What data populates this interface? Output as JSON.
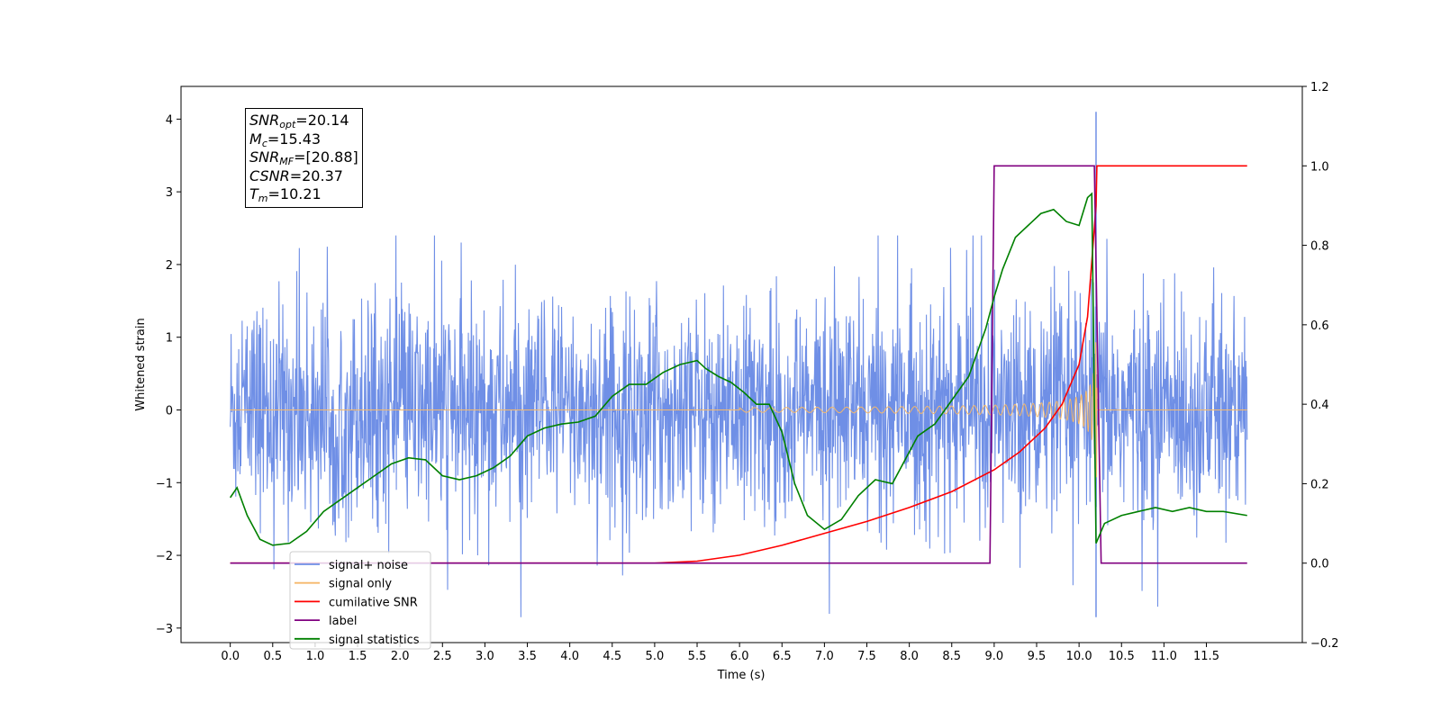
{
  "chart_data": {
    "type": "line",
    "xlabel": "Time (s)",
    "ylabel": "Whitened strain",
    "xlim": [
      -0.58,
      12.63
    ],
    "ylim": [
      -3.2,
      4.45
    ],
    "y2lim": [
      -0.2,
      1.2
    ],
    "x_ticks": [
      "0.0",
      "0.5",
      "1.0",
      "1.5",
      "2.0",
      "2.5",
      "3.0",
      "3.5",
      "4.0",
      "4.5",
      "5.0",
      "5.5",
      "6.0",
      "6.5",
      "7.0",
      "7.5",
      "8.0",
      "8.5",
      "9.0",
      "9.5",
      "10.0",
      "10.5",
      "11.0",
      "11.5"
    ],
    "y_ticks": [
      "4",
      "3",
      "2",
      "1",
      "0",
      "−1",
      "−2",
      "−3"
    ],
    "y2_ticks": [
      "1.2",
      "1.0",
      "0.8",
      "0.6",
      "0.4",
      "0.2",
      "0.0",
      "−0.2"
    ],
    "legend_position": "lower-left",
    "colors": {
      "signal_noise": "#6f8fe6",
      "signal_only": "#f5b86a",
      "cumulative_snr": "#ff0000",
      "label": "#800080",
      "signal_statistics": "#008000"
    },
    "series": [
      {
        "name": "signal+ noise",
        "axis": "left",
        "description_range": [
          -2.9,
          4.1
        ],
        "envelope_x": [
          0.0,
          11.98
        ],
        "spike_max_at": 10.2
      },
      {
        "name": "signal only",
        "axis": "left",
        "chirp": {
          "x_start": 6.0,
          "x_merge": 10.21,
          "x_end": 11.98,
          "max_amplitude": 2.0
        }
      },
      {
        "name": "cumilative SNR",
        "axis": "right",
        "x": [
          0.0,
          5.0,
          5.5,
          6.0,
          6.5,
          7.0,
          7.5,
          8.0,
          8.5,
          9.0,
          9.3,
          9.6,
          9.8,
          10.0,
          10.1,
          10.2,
          10.21,
          11.98
        ],
        "y": [
          0.0,
          0.0,
          0.005,
          0.02,
          0.045,
          0.075,
          0.105,
          0.14,
          0.18,
          0.235,
          0.28,
          0.34,
          0.4,
          0.5,
          0.62,
          0.9,
          1.0,
          1.0
        ]
      },
      {
        "name": "label",
        "axis": "right",
        "x": [
          0.0,
          8.95,
          9.0,
          10.18,
          10.26,
          11.98
        ],
        "y": [
          0.0,
          0.0,
          1.0,
          1.0,
          0.0,
          0.0
        ]
      },
      {
        "name": "signal statistics",
        "axis": "right",
        "x": [
          0.0,
          0.08,
          0.2,
          0.35,
          0.5,
          0.7,
          0.9,
          1.1,
          1.3,
          1.5,
          1.7,
          1.9,
          2.1,
          2.3,
          2.5,
          2.7,
          2.9,
          3.1,
          3.3,
          3.5,
          3.7,
          3.9,
          4.1,
          4.3,
          4.5,
          4.7,
          4.9,
          5.1,
          5.3,
          5.5,
          5.6,
          5.75,
          5.9,
          6.05,
          6.2,
          6.35,
          6.5,
          6.65,
          6.8,
          7.0,
          7.2,
          7.4,
          7.6,
          7.8,
          8.0,
          8.1,
          8.3,
          8.5,
          8.7,
          8.9,
          9.0,
          9.1,
          9.25,
          9.4,
          9.55,
          9.7,
          9.85,
          10.0,
          10.1,
          10.15,
          10.2,
          10.3,
          10.5,
          10.7,
          10.9,
          11.1,
          11.3,
          11.5,
          11.7,
          11.98
        ],
        "y": [
          0.165,
          0.19,
          0.12,
          0.06,
          0.045,
          0.05,
          0.08,
          0.13,
          0.16,
          0.19,
          0.22,
          0.25,
          0.265,
          0.26,
          0.22,
          0.21,
          0.22,
          0.24,
          0.27,
          0.32,
          0.34,
          0.35,
          0.355,
          0.37,
          0.42,
          0.45,
          0.45,
          0.48,
          0.5,
          0.51,
          0.49,
          0.47,
          0.455,
          0.43,
          0.4,
          0.4,
          0.33,
          0.2,
          0.12,
          0.085,
          0.11,
          0.17,
          0.21,
          0.2,
          0.28,
          0.32,
          0.35,
          0.41,
          0.47,
          0.59,
          0.67,
          0.74,
          0.82,
          0.85,
          0.88,
          0.89,
          0.86,
          0.85,
          0.92,
          0.93,
          0.05,
          0.1,
          0.12,
          0.13,
          0.14,
          0.13,
          0.14,
          0.13,
          0.13,
          0.12
        ]
      }
    ],
    "annotation": {
      "snr_opt": {
        "symbol": "SNR",
        "sub": "opt",
        "value": "=20.14"
      },
      "mc": {
        "symbol": "M",
        "sub": "c",
        "value": "=15.43"
      },
      "snr_mf": {
        "symbol": "SNR",
        "sub": "MF",
        "value": "=[20.88]"
      },
      "csnr": {
        "symbol": "CSNR",
        "sub": "",
        "value": "=20.37"
      },
      "tm": {
        "symbol": "T",
        "sub": "m",
        "value": "=10.21"
      }
    }
  }
}
